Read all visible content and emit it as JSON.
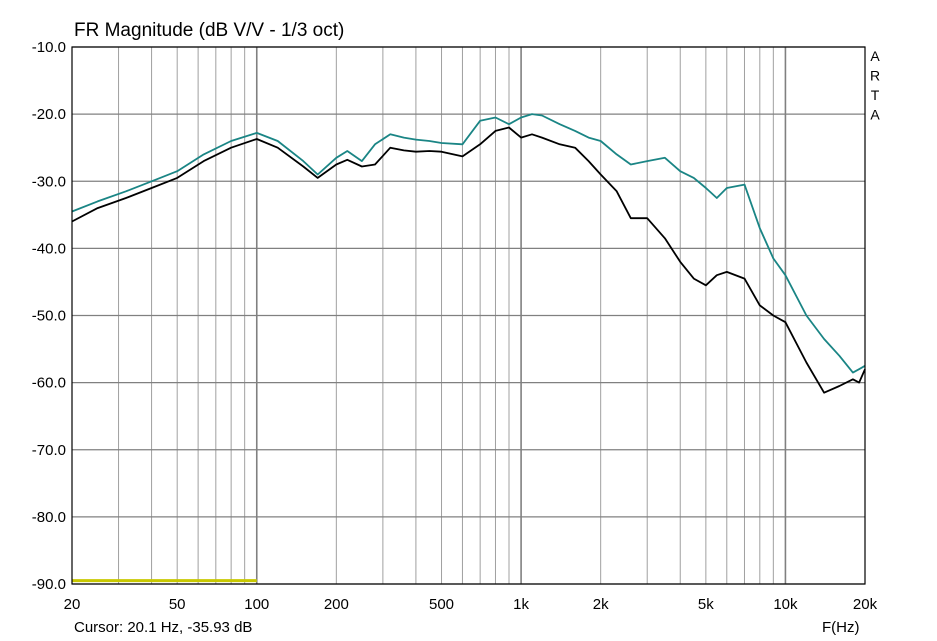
{
  "chart_data": {
    "type": "line",
    "title": "FR Magnitude (dB V/V - 1/3 oct)",
    "xlabel": "F(Hz)",
    "ylabel": "",
    "x_scale": "log",
    "xlim": [
      20,
      20000
    ],
    "ylim": [
      -90,
      -10
    ],
    "grid": true,
    "watermark": "ARTA",
    "cursor_readout": "Cursor: 20.1 Hz, -35.93 dB",
    "y_ticks": [
      -10,
      -20,
      -30,
      -40,
      -50,
      -60,
      -70,
      -80,
      -90
    ],
    "y_tick_labels": [
      "-10.0",
      "-20.0",
      "-30.0",
      "-40.0",
      "-50.0",
      "-60.0",
      "-70.0",
      "-80.0",
      "-90.0"
    ],
    "x_ticks": [
      20,
      50,
      100,
      200,
      500,
      1000,
      2000,
      5000,
      10000,
      20000
    ],
    "x_tick_labels": [
      "20",
      "50",
      "100",
      "200",
      "500",
      "1k",
      "2k",
      "5k",
      "10k",
      "20k"
    ],
    "colors": {
      "teal": "#1a8585",
      "black": "#000000",
      "yellow": "#c8c800",
      "grid": "#a0a0a0",
      "major_grid": "#808080"
    },
    "series": [
      {
        "color": "#1a8585",
        "x": [
          20,
          25,
          32,
          40,
          50,
          63,
          80,
          100,
          120,
          150,
          170,
          200,
          220,
          250,
          280,
          320,
          360,
          400,
          450,
          500,
          600,
          700,
          800,
          900,
          1000,
          1100,
          1200,
          1400,
          1600,
          1800,
          2000,
          2300,
          2600,
          3000,
          3500,
          4000,
          4500,
          5000,
          5500,
          6000,
          7000,
          8000,
          9000,
          10000,
          12000,
          14000,
          16000,
          18000,
          19000,
          20000
        ],
        "y": [
          -34.5,
          -33,
          -31.5,
          -30,
          -28.5,
          -26,
          -24,
          -22.8,
          -24,
          -27,
          -29,
          -26.5,
          -25.5,
          -27,
          -24.5,
          -23,
          -23.5,
          -23.8,
          -24,
          -24.3,
          -24.5,
          -21,
          -20.5,
          -21.5,
          -20.5,
          -20,
          -20.2,
          -21.5,
          -22.5,
          -23.5,
          -24,
          -26,
          -27.5,
          -27,
          -26.5,
          -28.5,
          -29.5,
          -31,
          -32.5,
          -31,
          -30.5,
          -37,
          -41.5,
          -44,
          -50,
          -53.5,
          -56,
          -58.5,
          -58,
          -57.5
        ]
      },
      {
        "color": "#000000",
        "x": [
          20,
          25,
          32,
          40,
          50,
          63,
          80,
          100,
          120,
          150,
          170,
          200,
          220,
          250,
          280,
          320,
          360,
          400,
          450,
          500,
          600,
          700,
          800,
          900,
          1000,
          1100,
          1200,
          1400,
          1600,
          1800,
          2000,
          2300,
          2600,
          3000,
          3500,
          4000,
          4500,
          5000,
          5500,
          6000,
          7000,
          8000,
          9000,
          10000,
          12000,
          14000,
          16000,
          18000,
          19000,
          20000
        ],
        "y": [
          -36,
          -34,
          -32.5,
          -31,
          -29.5,
          -27,
          -25,
          -23.7,
          -25,
          -27.8,
          -29.5,
          -27.5,
          -26.8,
          -27.8,
          -27.5,
          -25,
          -25.4,
          -25.6,
          -25.5,
          -25.6,
          -26.3,
          -24.5,
          -22.5,
          -22,
          -23.5,
          -23,
          -23.5,
          -24.5,
          -25,
          -27,
          -29,
          -31.5,
          -35.5,
          -35.5,
          -38.5,
          -42,
          -44.5,
          -45.5,
          -44,
          -43.5,
          -44.5,
          -48.5,
          -50,
          -51,
          -57,
          -61.5,
          -60.5,
          -59.5,
          -60,
          -58
        ]
      },
      {
        "color": "#c8c800",
        "x": [
          20,
          100
        ],
        "y": [
          -89.5,
          -89.5
        ]
      }
    ]
  }
}
